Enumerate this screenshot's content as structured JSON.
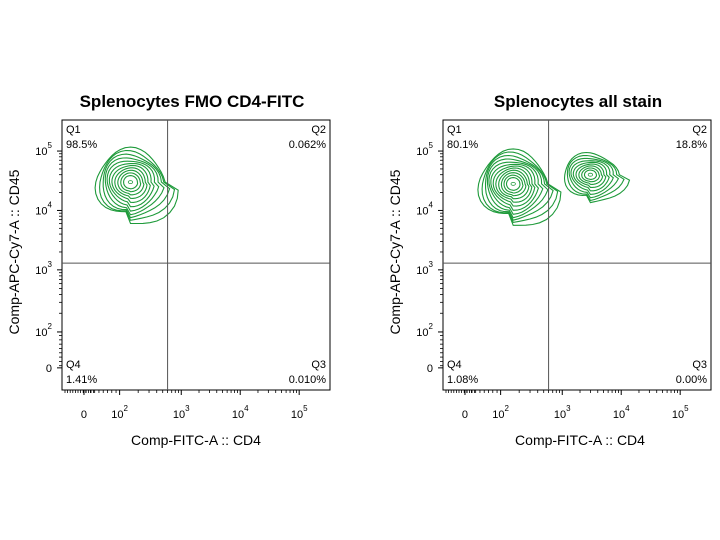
{
  "chart_data": [
    {
      "type": "contour",
      "title": "Splenocytes FMO CD4-FITC",
      "xlabel": "Comp-FITC-A :: CD4",
      "ylabel": "Comp-APC-Cy7-A :: CD45",
      "x_ticks": [
        {
          "base": "0",
          "exp": ""
        },
        {
          "base": "10",
          "exp": "2"
        },
        {
          "base": "10",
          "exp": "3"
        },
        {
          "base": "10",
          "exp": "4"
        },
        {
          "base": "10",
          "exp": "5"
        }
      ],
      "y_ticks": [
        {
          "base": "0",
          "exp": ""
        },
        {
          "base": "10",
          "exp": "2"
        },
        {
          "base": "10",
          "exp": "3"
        },
        {
          "base": "10",
          "exp": "4"
        },
        {
          "base": "10",
          "exp": "5"
        }
      ],
      "gate": {
        "x": 600,
        "y": 1300
      },
      "quadrants": [
        {
          "name": "Q1",
          "percent": "98.5%"
        },
        {
          "name": "Q2",
          "percent": "0.062%"
        },
        {
          "name": "Q3",
          "percent": "0.010%"
        },
        {
          "name": "Q4",
          "percent": "1.41%"
        }
      ],
      "populations": [
        {
          "center_x": 150,
          "center_y": 30000,
          "levels": 11,
          "color": "#1e9a3a"
        }
      ]
    },
    {
      "type": "contour",
      "title": "Splenocytes all stain",
      "xlabel": "Comp-FITC-A :: CD4",
      "ylabel": "Comp-APC-Cy7-A :: CD45",
      "x_ticks": [
        {
          "base": "0",
          "exp": ""
        },
        {
          "base": "10",
          "exp": "2"
        },
        {
          "base": "10",
          "exp": "3"
        },
        {
          "base": "10",
          "exp": "4"
        },
        {
          "base": "10",
          "exp": "5"
        }
      ],
      "y_ticks": [
        {
          "base": "0",
          "exp": ""
        },
        {
          "base": "10",
          "exp": "2"
        },
        {
          "base": "10",
          "exp": "3"
        },
        {
          "base": "10",
          "exp": "4"
        },
        {
          "base": "10",
          "exp": "5"
        }
      ],
      "gate": {
        "x": 600,
        "y": 1300
      },
      "quadrants": [
        {
          "name": "Q1",
          "percent": "80.1%"
        },
        {
          "name": "Q2",
          "percent": "18.8%"
        },
        {
          "name": "Q3",
          "percent": "0.00%"
        },
        {
          "name": "Q4",
          "percent": "1.08%"
        }
      ],
      "populations": [
        {
          "center_x": 160,
          "center_y": 28000,
          "levels": 12,
          "color": "#1e9a3a"
        },
        {
          "center_x": 3000,
          "center_y": 40000,
          "levels": 9,
          "color": "#1e9a3a"
        }
      ]
    }
  ]
}
